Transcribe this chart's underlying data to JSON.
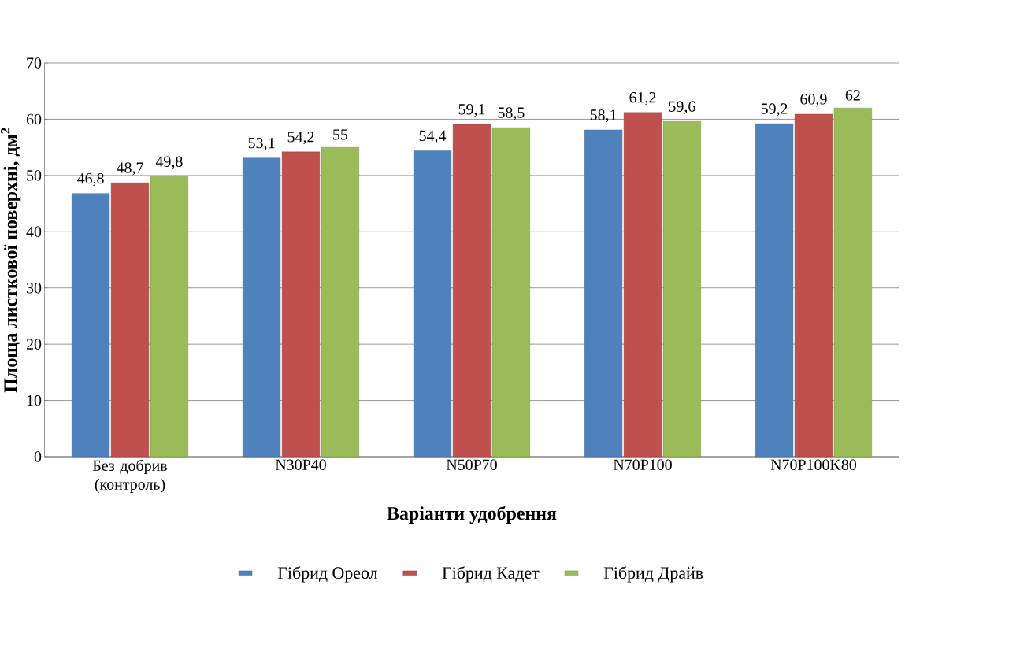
{
  "chart_data": {
    "type": "bar",
    "xlabel": "**Варіанти удобрення**",
    "ylabel": "**Площа листкової поверхні, дм$^{2}$**",
    "categories": [
      "Без добрив (контроль)",
      "N30P40",
      "N50P70",
      "N70P100",
      "N70P100K80"
    ],
    "series": [
      {
        "name": "Гібрид Ореол",
        "color": "#4f81bd",
        "values": [
          46.8,
          53.1,
          54.4,
          58.1,
          59.2
        ],
        "value_labels": [
          "46,8",
          "53,1",
          "54,4",
          "58,1",
          "59,2"
        ]
      },
      {
        "name": "Гібрид Кадет",
        "color": "#c0504d",
        "values": [
          48.7,
          54.2,
          59.1,
          61.2,
          60.9
        ],
        "value_labels": [
          "48,7",
          "54,2",
          "59,1",
          "61,2",
          "60,9"
        ]
      },
      {
        "name": "Гібрид Драйв",
        "color": "#9bbb59",
        "values": [
          49.8,
          55,
          58.5,
          59.6,
          62
        ],
        "value_labels": [
          "49,8",
          "55",
          "58,5",
          "59,6",
          "62"
        ]
      }
    ],
    "ylim": [
      0,
      70
    ],
    "yticks": [
      0,
      10,
      20,
      30,
      40,
      50,
      60,
      70
    ],
    "grid": "y",
    "legend": "bottom"
  }
}
